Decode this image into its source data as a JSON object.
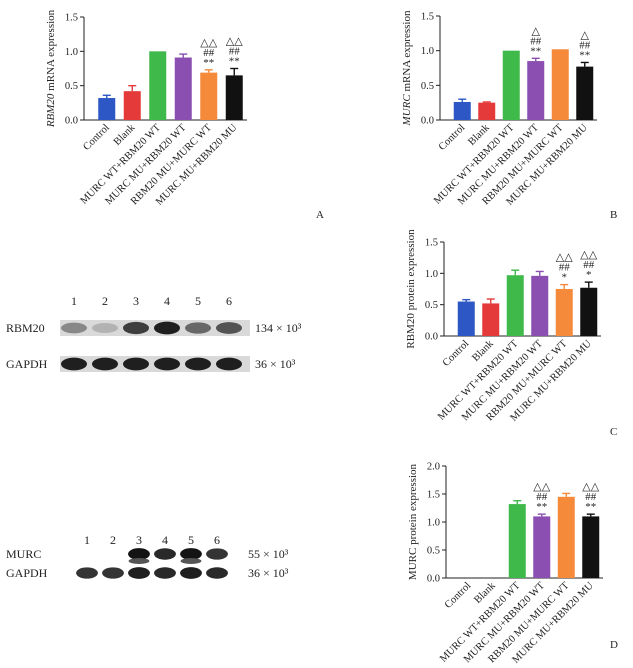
{
  "colors": [
    "#2d57c4",
    "#e43a3a",
    "#3fb94a",
    "#8a4fb0",
    "#f58a3b",
    "#111111"
  ],
  "chart_data": [
    {
      "type": "bar",
      "panel_letter": "A",
      "ylabel_gene": "RBM20",
      "ylabel_rest": " mRNA expression",
      "ylim": [
        0,
        1.5
      ],
      "ytick_labels": [
        "0.0",
        "0.5",
        "1.0",
        "1.5"
      ],
      "categories": [
        "Control",
        "Blank",
        "MURC WT+RBM20 WT",
        "MURC MU+RBM20 WT",
        "RBM20 MU+MURC WT",
        "MURC MU+RBM20 MU"
      ],
      "values": [
        0.32,
        0.42,
        1.0,
        0.91,
        0.69,
        0.65
      ],
      "errors": [
        0.04,
        0.08,
        0.0,
        0.05,
        0.04,
        0.1
      ],
      "significance": [
        "",
        "",
        "",
        "",
        "△△\n##\n**",
        "△△\n##\n**"
      ]
    },
    {
      "type": "bar",
      "panel_letter": "B",
      "ylabel_gene": "MURC",
      "ylabel_rest": " mRNA expression",
      "ylim": [
        0,
        1.5
      ],
      "ytick_labels": [
        "0.0",
        "0.5",
        "1.0",
        "1.5"
      ],
      "categories": [
        "Control",
        "Blank",
        "MURC WT+RBM20 WT",
        "MURC MU+RBM20 WT",
        "RBM20 MU+MURC WT",
        "MURC MU+RBM20 MU"
      ],
      "values": [
        0.26,
        0.25,
        1.0,
        0.85,
        1.02,
        0.77
      ],
      "errors": [
        0.04,
        0.01,
        0.0,
        0.04,
        0.0,
        0.06
      ],
      "significance": [
        "",
        "",
        "",
        "△\n##\n**",
        "",
        "△\n##\n**"
      ]
    },
    {
      "type": "bar",
      "panel_letter": "C",
      "ylabel_gene": "",
      "ylabel_rest": "RBM20 protein expression",
      "ylim": [
        0,
        1.5
      ],
      "ytick_labels": [
        "0.0",
        "0.5",
        "1.0",
        "1.5"
      ],
      "categories": [
        "Control",
        "Blank",
        "MURC WT+RBM20 WT",
        "MURC MU+RBM20 WT",
        "RBM20 MU+MURC WT",
        "MURC MU+RBM20 MU"
      ],
      "values": [
        0.55,
        0.52,
        0.97,
        0.96,
        0.75,
        0.77
      ],
      "errors": [
        0.03,
        0.07,
        0.08,
        0.07,
        0.07,
        0.09
      ],
      "significance": [
        "",
        "",
        "",
        "",
        "△△\n##\n*",
        "△△\n##\n*"
      ]
    },
    {
      "type": "bar",
      "panel_letter": "D",
      "ylabel_gene": "",
      "ylabel_rest": "MURC protein expression",
      "ylim": [
        0,
        2.0
      ],
      "ytick_labels": [
        "0.0",
        "0.5",
        "1.0",
        "1.5",
        "2.0"
      ],
      "categories": [
        "Control",
        "Blank",
        "MURC WT+RBM20 WT",
        "MURC MU+RBM20 WT",
        "RBM20 MU+MURC WT",
        "MURC MU+RBM20 MU"
      ],
      "values": [
        0,
        0,
        1.32,
        1.1,
        1.45,
        1.1
      ],
      "errors": [
        0,
        0,
        0.06,
        0.04,
        0.06,
        0.04
      ],
      "significance": [
        "",
        "",
        "",
        "△△\n##\n**",
        "",
        "△△\n##\n**"
      ]
    }
  ],
  "blots": [
    {
      "lanes": [
        "1",
        "2",
        "3",
        "4",
        "5",
        "6"
      ],
      "rows": [
        {
          "label": "RBM20",
          "size": "134 × 10³",
          "intensity": [
            0.45,
            0.25,
            0.8,
            0.95,
            0.6,
            0.7
          ]
        },
        {
          "label": "GAPDH",
          "size": "36 × 10³",
          "intensity": [
            0.95,
            0.95,
            0.95,
            0.95,
            0.95,
            0.95
          ]
        }
      ]
    },
    {
      "lanes": [
        "1",
        "2",
        "3",
        "4",
        "5",
        "6"
      ],
      "rows": [
        {
          "label": "MURC",
          "size": "55 × 10³",
          "intensity": [
            0.0,
            0.0,
            1.0,
            0.9,
            1.0,
            0.85
          ]
        },
        {
          "label": "GAPDH",
          "size": "36 × 10³",
          "intensity": [
            0.85,
            0.85,
            0.95,
            0.9,
            0.95,
            0.9
          ]
        }
      ]
    }
  ]
}
